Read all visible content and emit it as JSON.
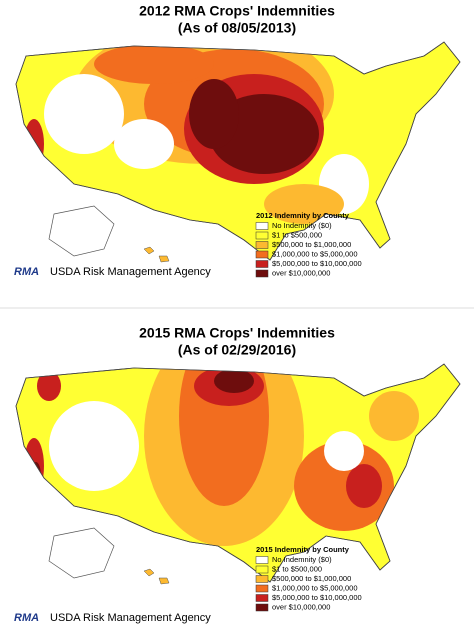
{
  "maps": [
    {
      "title": "2012 RMA Crops' Indemnities",
      "subtitle": "(As of 08/05/2013)",
      "legend": {
        "title": "2012 Indemnity by County",
        "items": [
          {
            "label": "No Indemnity ($0)",
            "color": "#ffffff"
          },
          {
            "label": "$1 to $500,000",
            "color": "#ffff33"
          },
          {
            "label": "$500,000 to $1,000,000",
            "color": "#fdb930"
          },
          {
            "label": "$1,000,000 to $5,000,000",
            "color": "#f26d1f"
          },
          {
            "label": "$5,000,000 to $10,000,000",
            "color": "#c8201e"
          },
          {
            "label": "over $10,000,000",
            "color": "#6e0d0d"
          }
        ]
      },
      "logo": "RMA",
      "agency": "USDA Risk Management Agency"
    },
    {
      "title": "2015 RMA Crops' Indemnities",
      "subtitle": "(As of 02/29/2016)",
      "legend": {
        "title": "2015 Indemnity by County",
        "items": [
          {
            "label": "No Indemnity ($0)",
            "color": "#ffffff"
          },
          {
            "label": "$1 to $500,000",
            "color": "#ffff33"
          },
          {
            "label": "$500,000 to $1,000,000",
            "color": "#fdb930"
          },
          {
            "label": "$1,000,000 to $5,000,000",
            "color": "#f26d1f"
          },
          {
            "label": "$5,000,000 to $10,000,000",
            "color": "#c8201e"
          },
          {
            "label": "over $10,000,000",
            "color": "#6e0d0d"
          }
        ]
      },
      "logo": "RMA",
      "agency": "USDA Risk Management Agency"
    }
  ]
}
